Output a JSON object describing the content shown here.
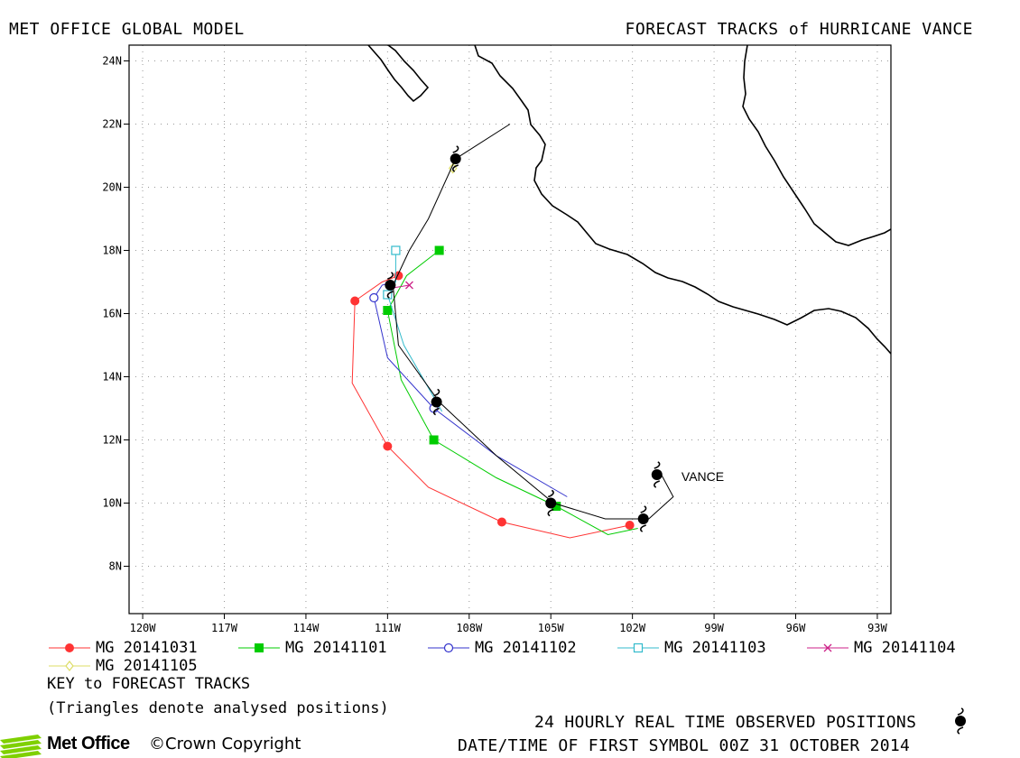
{
  "header": {
    "left": "MET OFFICE GLOBAL MODEL",
    "right": "FORECAST TRACKS of HURRICANE VANCE"
  },
  "map": {
    "lon_range": [
      -120.5,
      -92.5
    ],
    "lat_range": [
      6.5,
      24.5
    ],
    "x_ticks": [
      {
        "v": -120,
        "label": "120W"
      },
      {
        "v": -117,
        "label": "117W"
      },
      {
        "v": -114,
        "label": "114W"
      },
      {
        "v": -111,
        "label": "111W"
      },
      {
        "v": -108,
        "label": "108W"
      },
      {
        "v": -105,
        "label": "105W"
      },
      {
        "v": -102,
        "label": "102W"
      },
      {
        "v": -99,
        "label": "99W"
      },
      {
        "v": -96,
        "label": "96W"
      },
      {
        "v": -93,
        "label": "93W"
      }
    ],
    "y_ticks": [
      {
        "v": 8,
        "label": "8N"
      },
      {
        "v": 10,
        "label": "10N"
      },
      {
        "v": 12,
        "label": "12N"
      },
      {
        "v": 14,
        "label": "14N"
      },
      {
        "v": 16,
        "label": "16N"
      },
      {
        "v": 18,
        "label": "18N"
      },
      {
        "v": 20,
        "label": "20N"
      },
      {
        "v": 22,
        "label": "22N"
      },
      {
        "v": 24,
        "label": "24N"
      }
    ],
    "grid": "dotted",
    "storm_label": "VANCE",
    "colors": {
      "land": "#000000",
      "observed": "#000000",
      "MG 20141031": "#ff3333",
      "MG 20141101": "#00cc00",
      "MG 20141102": "#3333cc",
      "MG 20141103": "#33bbcc",
      "MG 20141104": "#cc2288",
      "MG 20141105": "#dddd66"
    }
  },
  "chart_data": {
    "type": "scatter",
    "title": "FORECAST TRACKS of HURRICANE VANCE",
    "x_axis": "longitude",
    "y_axis": "latitude",
    "series": [
      {
        "name": "MG 20141031",
        "marker": "circle-filled",
        "color": "#ff3333",
        "points": [
          [
            -102.1,
            9.3
          ],
          [
            -104.3,
            8.9
          ],
          [
            -106.8,
            9.4
          ],
          [
            -109.5,
            10.5
          ],
          [
            -111.0,
            11.8
          ],
          [
            -112.3,
            13.8
          ],
          [
            -112.2,
            16.4
          ],
          [
            -111.2,
            17.0
          ],
          [
            -110.6,
            17.2
          ]
        ],
        "markers": [
          [
            -102.1,
            9.3
          ],
          [
            -106.8,
            9.4
          ],
          [
            -111.0,
            11.8
          ],
          [
            -112.2,
            16.4
          ],
          [
            -110.6,
            17.2
          ]
        ]
      },
      {
        "name": "MG 20141101",
        "marker": "square-filled",
        "color": "#00cc00",
        "points": [
          [
            -101.8,
            9.2
          ],
          [
            -102.9,
            9.0
          ],
          [
            -104.8,
            9.9
          ],
          [
            -107.0,
            10.8
          ],
          [
            -109.3,
            12.0
          ],
          [
            -110.5,
            13.9
          ],
          [
            -111.0,
            16.1
          ],
          [
            -110.3,
            17.2
          ],
          [
            -109.1,
            18.0
          ]
        ],
        "markers": [
          [
            -104.8,
            9.9
          ],
          [
            -109.3,
            12.0
          ],
          [
            -111.0,
            16.1
          ],
          [
            -109.1,
            18.0
          ]
        ]
      },
      {
        "name": "MG 20141102",
        "marker": "circle-open",
        "color": "#3333cc",
        "points": [
          [
            -104.4,
            10.2
          ],
          [
            -107.0,
            11.5
          ],
          [
            -109.3,
            13.0
          ],
          [
            -111.0,
            14.6
          ],
          [
            -111.5,
            16.5
          ],
          [
            -111.2,
            16.9
          ],
          [
            -110.8,
            17.0
          ]
        ],
        "markers": [
          [
            -109.3,
            13.0
          ],
          [
            -111.5,
            16.5
          ]
        ]
      },
      {
        "name": "MG 20141103",
        "marker": "square-open",
        "color": "#33bbcc",
        "points": [
          [
            -109.0,
            12.9
          ],
          [
            -110.4,
            15.0
          ],
          [
            -111.0,
            16.6
          ],
          [
            -110.7,
            17.0
          ],
          [
            -110.7,
            18.0
          ]
        ],
        "markers": [
          [
            -111.0,
            16.6
          ],
          [
            -110.7,
            18.0
          ]
        ]
      },
      {
        "name": "MG 20141104",
        "marker": "x",
        "color": "#cc2288",
        "points": [
          [
            -110.9,
            16.8
          ],
          [
            -110.2,
            16.9
          ]
        ],
        "markers": [
          [
            -110.2,
            16.9
          ]
        ]
      },
      {
        "name": "MG 20141105",
        "marker": "diamond-open",
        "color": "#dddd66",
        "points": [
          [
            -108.7,
            20.5
          ],
          [
            -108.5,
            20.7
          ]
        ],
        "markers": [
          [
            -108.6,
            20.6
          ]
        ]
      },
      {
        "name": "observed",
        "marker": "hurricane-symbol",
        "color": "#000000",
        "points": [
          [
            -101.0,
            11.0
          ],
          [
            -100.5,
            10.2
          ],
          [
            -101.4,
            9.5
          ],
          [
            -103.0,
            9.5
          ],
          [
            -104.9,
            10.0
          ],
          [
            -107.0,
            11.5
          ],
          [
            -109.1,
            13.2
          ],
          [
            -110.6,
            15.0
          ],
          [
            -110.8,
            16.9
          ],
          [
            -110.2,
            18.0
          ],
          [
            -109.5,
            19.0
          ],
          [
            -108.5,
            20.9
          ],
          [
            -106.5,
            22.0
          ]
        ],
        "markers": [
          [
            -101.1,
            10.9
          ],
          [
            -101.6,
            9.5
          ],
          [
            -105.0,
            10.0
          ],
          [
            -109.2,
            13.2
          ],
          [
            -110.9,
            16.9
          ],
          [
            -108.5,
            20.9
          ]
        ]
      }
    ]
  },
  "legend": [
    {
      "label": "MG 20141031",
      "marker": "circle-filled",
      "color": "#ff3333"
    },
    {
      "label": "MG 20141101",
      "marker": "square-filled",
      "color": "#00cc00"
    },
    {
      "label": "MG 20141102",
      "marker": "circle-open",
      "color": "#3333cc"
    },
    {
      "label": "MG 20141103",
      "marker": "square-open",
      "color": "#33bbcc"
    },
    {
      "label": "MG 20141104",
      "marker": "x",
      "color": "#cc2288"
    },
    {
      "label": "MG 20141105",
      "marker": "diamond-open",
      "color": "#dddd66"
    }
  ],
  "key": {
    "line1": "KEY to FORECAST TRACKS",
    "line2": "(Triangles denote analysed positions)"
  },
  "footer": {
    "observed": "24 HOURLY REAL TIME OBSERVED POSITIONS",
    "datetime": "DATE/TIME OF FIRST SYMBOL 00Z 31 OCTOBER 2014",
    "logo": "Met Office",
    "copyright": "Crown Copyright",
    "copyright_symbol": "©"
  }
}
